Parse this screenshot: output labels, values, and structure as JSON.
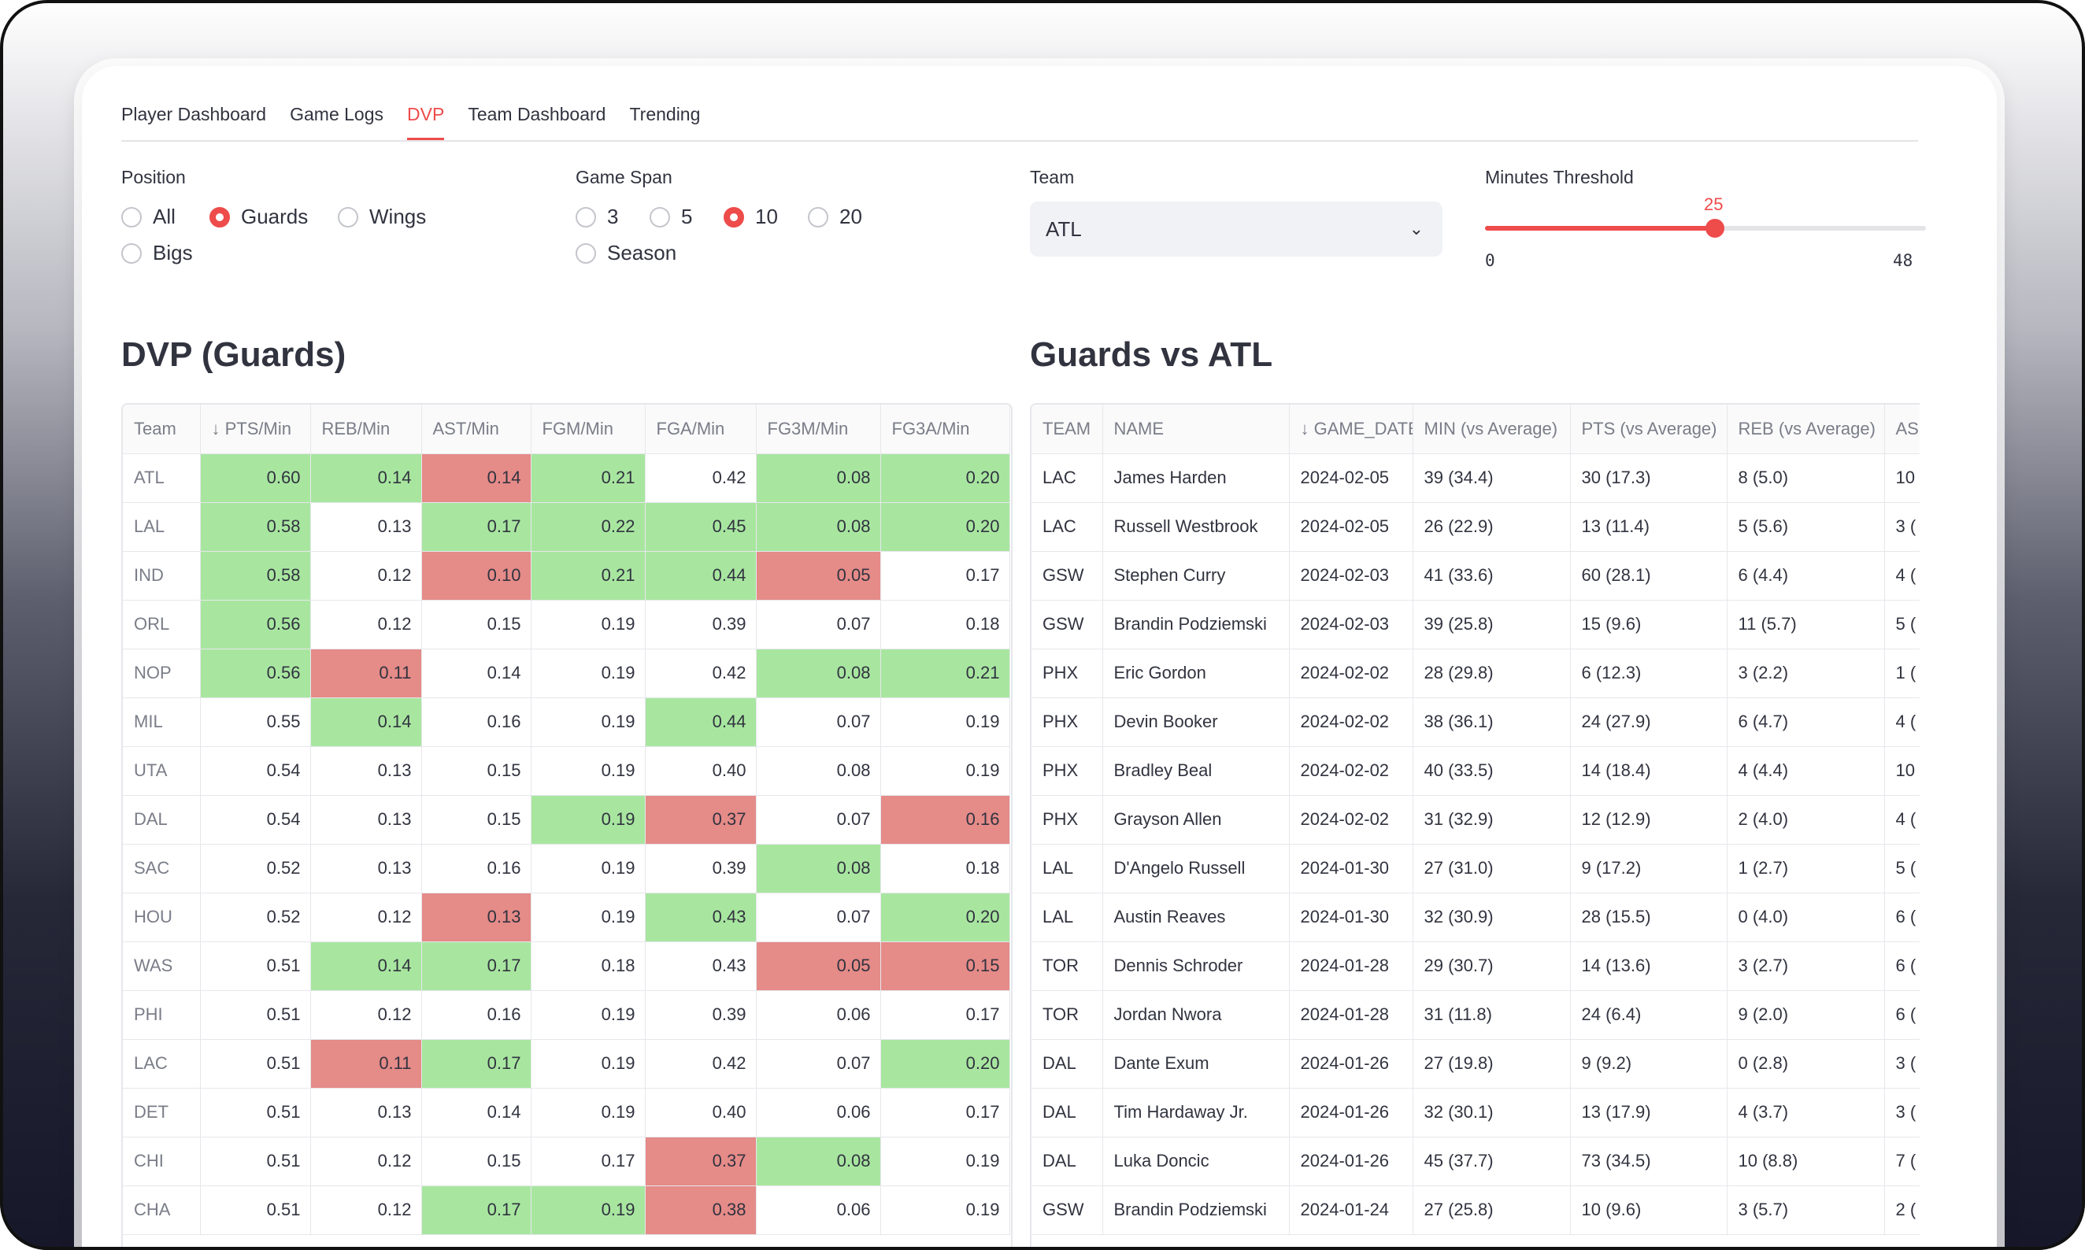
{
  "nav": {
    "tabs": [
      "Player Dashboard",
      "Game Logs",
      "DVP",
      "Team Dashboard",
      "Trending"
    ],
    "active": "DVP"
  },
  "filters": {
    "position": {
      "label": "Position",
      "options": [
        "All",
        "Guards",
        "Wings",
        "Bigs"
      ],
      "selected": "Guards"
    },
    "game_span": {
      "label": "Game Span",
      "options": [
        "3",
        "5",
        "10",
        "20",
        "Season"
      ],
      "selected": "10"
    },
    "team": {
      "label": "Team",
      "value": "ATL"
    },
    "minutes": {
      "label": "Minutes Threshold",
      "value": "25",
      "min": "0",
      "max": "48",
      "fraction": 0.5208
    }
  },
  "dvp": {
    "title": "DVP (Guards)",
    "columns": [
      "Team",
      "↓ PTS/Min",
      "REB/Min",
      "AST/Min",
      "FGM/Min",
      "FGA/Min",
      "FG3M/Min",
      "FG3A/Min"
    ],
    "rows": [
      [
        "ATL",
        "0.60",
        "0.14",
        "0.14",
        "0.21",
        "0.42",
        "0.08",
        "0.20"
      ],
      [
        "LAL",
        "0.58",
        "0.13",
        "0.17",
        "0.22",
        "0.45",
        "0.08",
        "0.20"
      ],
      [
        "IND",
        "0.58",
        "0.12",
        "0.10",
        "0.21",
        "0.44",
        "0.05",
        "0.17"
      ],
      [
        "ORL",
        "0.56",
        "0.12",
        "0.15",
        "0.19",
        "0.39",
        "0.07",
        "0.18"
      ],
      [
        "NOP",
        "0.56",
        "0.11",
        "0.14",
        "0.19",
        "0.42",
        "0.08",
        "0.21"
      ],
      [
        "MIL",
        "0.55",
        "0.14",
        "0.16",
        "0.19",
        "0.44",
        "0.07",
        "0.19"
      ],
      [
        "UTA",
        "0.54",
        "0.13",
        "0.15",
        "0.19",
        "0.40",
        "0.08",
        "0.19"
      ],
      [
        "DAL",
        "0.54",
        "0.13",
        "0.15",
        "0.19",
        "0.37",
        "0.07",
        "0.16"
      ],
      [
        "SAC",
        "0.52",
        "0.13",
        "0.16",
        "0.19",
        "0.39",
        "0.08",
        "0.18"
      ],
      [
        "HOU",
        "0.52",
        "0.12",
        "0.13",
        "0.19",
        "0.43",
        "0.07",
        "0.20"
      ],
      [
        "WAS",
        "0.51",
        "0.14",
        "0.17",
        "0.18",
        "0.43",
        "0.05",
        "0.15"
      ],
      [
        "PHI",
        "0.51",
        "0.12",
        "0.16",
        "0.19",
        "0.39",
        "0.06",
        "0.17"
      ],
      [
        "LAC",
        "0.51",
        "0.11",
        "0.17",
        "0.19",
        "0.42",
        "0.07",
        "0.20"
      ],
      [
        "DET",
        "0.51",
        "0.13",
        "0.14",
        "0.19",
        "0.40",
        "0.06",
        "0.17"
      ],
      [
        "CHI",
        "0.51",
        "0.12",
        "0.15",
        "0.17",
        "0.37",
        "0.08",
        "0.19"
      ],
      [
        "CHA",
        "0.51",
        "0.12",
        "0.17",
        "0.19",
        "0.38",
        "0.06",
        "0.19"
      ]
    ],
    "highlights": [
      "-gr-rg-gg",
      "-g-gggg",
      "-g-rg-r-",
      "-g------",
      "-grg--g g",
      "--g--g--",
      "--------",
      "----grr",
      "------g-",
      "---r-g-g",
      "--gg--rr",
      "--------",
      "--rg---g",
      "--------",
      "-----rg-",
      "---ggr--"
    ],
    "cell_colors": [
      [
        "",
        "g",
        "g",
        "r",
        "g",
        "",
        "g",
        "g"
      ],
      [
        "",
        "g",
        "",
        "g",
        "g",
        "g",
        "g",
        "g"
      ],
      [
        "",
        "g",
        "",
        "r",
        "g",
        "g",
        "r",
        ""
      ],
      [
        "",
        "g",
        "",
        "",
        "",
        "",
        "",
        ""
      ],
      [
        "",
        "g",
        "r",
        "",
        "",
        "",
        "g",
        "g"
      ],
      [
        "",
        "",
        "g",
        "",
        "",
        "g",
        "",
        ""
      ],
      [
        "",
        "",
        "",
        "",
        "",
        "",
        "",
        ""
      ],
      [
        "",
        "",
        "",
        "",
        "g",
        "r",
        "",
        "r"
      ],
      [
        "",
        "",
        "",
        "",
        "",
        "",
        "g",
        ""
      ],
      [
        "",
        "",
        "",
        "r",
        "",
        "g",
        "",
        "g"
      ],
      [
        "",
        "",
        "g",
        "g",
        "",
        "",
        "r",
        "r"
      ],
      [
        "",
        "",
        "",
        "",
        "",
        "",
        "",
        ""
      ],
      [
        "",
        "",
        "r",
        "g",
        "",
        "",
        "",
        "g"
      ],
      [
        "",
        "",
        "",
        "",
        "",
        "",
        "",
        ""
      ],
      [
        "",
        "",
        "",
        "",
        "",
        "r",
        "g",
        ""
      ],
      [
        "",
        "",
        "",
        "g",
        "g",
        "r",
        "",
        ""
      ]
    ]
  },
  "games": {
    "title": "Guards vs ATL",
    "columns": [
      "TEAM",
      "NAME",
      "↓ GAME_DATE",
      "MIN (vs Average)",
      "PTS (vs Average)",
      "REB (vs Average)",
      "AS"
    ],
    "rows": [
      [
        "LAC",
        "James Harden",
        "2024-02-05",
        "39 (34.4)",
        "30 (17.3)",
        "8 (5.0)",
        "10"
      ],
      [
        "LAC",
        "Russell Westbrook",
        "2024-02-05",
        "26 (22.9)",
        "13 (11.4)",
        "5 (5.6)",
        "3 ("
      ],
      [
        "GSW",
        "Stephen Curry",
        "2024-02-03",
        "41 (33.6)",
        "60 (28.1)",
        "6 (4.4)",
        "4 ("
      ],
      [
        "GSW",
        "Brandin Podziemski",
        "2024-02-03",
        "39 (25.8)",
        "15 (9.6)",
        "11 (5.7)",
        "5 ("
      ],
      [
        "PHX",
        "Eric Gordon",
        "2024-02-02",
        "28 (29.8)",
        "6 (12.3)",
        "3 (2.2)",
        "1 ("
      ],
      [
        "PHX",
        "Devin Booker",
        "2024-02-02",
        "38 (36.1)",
        "24 (27.9)",
        "6 (4.7)",
        "4 ("
      ],
      [
        "PHX",
        "Bradley Beal",
        "2024-02-02",
        "40 (33.5)",
        "14 (18.4)",
        "4 (4.4)",
        "10"
      ],
      [
        "PHX",
        "Grayson Allen",
        "2024-02-02",
        "31 (32.9)",
        "12 (12.9)",
        "2 (4.0)",
        "4 ("
      ],
      [
        "LAL",
        "D'Angelo Russell",
        "2024-01-30",
        "27 (31.0)",
        "9 (17.2)",
        "1 (2.7)",
        "5 ("
      ],
      [
        "LAL",
        "Austin Reaves",
        "2024-01-30",
        "32 (30.9)",
        "28 (15.5)",
        "0 (4.0)",
        "6 ("
      ],
      [
        "TOR",
        "Dennis Schroder",
        "2024-01-28",
        "29 (30.7)",
        "14 (13.6)",
        "3 (2.7)",
        "6 ("
      ],
      [
        "TOR",
        "Jordan Nwora",
        "2024-01-28",
        "31 (11.8)",
        "24 (6.4)",
        "9 (2.0)",
        "6 ("
      ],
      [
        "DAL",
        "Dante Exum",
        "2024-01-26",
        "27 (19.8)",
        "9 (9.2)",
        "0 (2.8)",
        "3 ("
      ],
      [
        "DAL",
        "Tim Hardaway Jr.",
        "2024-01-26",
        "32 (30.1)",
        "13 (17.9)",
        "4 (3.7)",
        "3 ("
      ],
      [
        "DAL",
        "Luka Doncic",
        "2024-01-26",
        "45 (37.7)",
        "73 (34.5)",
        "10 (8.8)",
        "7 ("
      ],
      [
        "GSW",
        "Brandin Podziemski",
        "2024-01-24",
        "27 (25.8)",
        "10 (9.6)",
        "3 (5.7)",
        "2 ("
      ]
    ]
  },
  "colors": {
    "accent": "#ee4b4b",
    "good": "#a8e6a0",
    "bad": "#e58b88"
  }
}
